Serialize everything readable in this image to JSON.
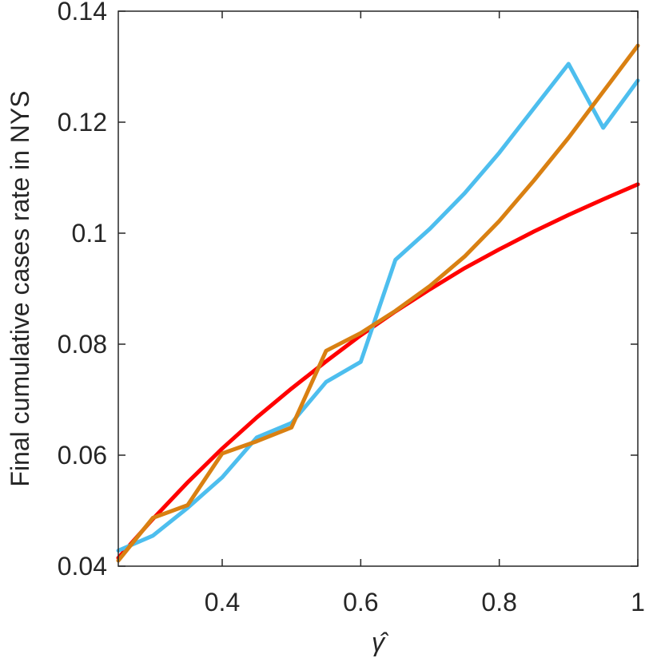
{
  "chart_data": {
    "type": "line",
    "title": "",
    "xlabel": "γ̂",
    "ylabel": "Final cumulative cases rate in NYS",
    "xlim": [
      0.25,
      1.0
    ],
    "ylim": [
      0.04,
      0.14
    ],
    "xticks": [
      0.4,
      0.6,
      0.8,
      1.0
    ],
    "xtick_labels": [
      "0.4",
      "0.6",
      "0.8",
      "1"
    ],
    "yticks": [
      0.04,
      0.06,
      0.08,
      0.1,
      0.12,
      0.14
    ],
    "ytick_labels": [
      "0.04",
      "0.06",
      "0.08",
      "0.1",
      "0.12",
      "0.14"
    ],
    "grid": false,
    "series": [
      {
        "color": "#FF0000",
        "x": [
          0.25,
          0.3,
          0.35,
          0.4,
          0.45,
          0.5,
          0.55,
          0.6,
          0.65,
          0.7,
          0.75,
          0.8,
          0.85,
          0.9,
          0.95,
          1.0
        ],
        "y": [
          0.0415,
          0.0485,
          0.0551,
          0.0612,
          0.0668,
          0.072,
          0.0769,
          0.0816,
          0.0859,
          0.0899,
          0.0937,
          0.0971,
          0.1003,
          0.1033,
          0.1061,
          0.1088
        ]
      },
      {
        "color": "#4DBEEE",
        "x": [
          0.25,
          0.3,
          0.35,
          0.4,
          0.45,
          0.5,
          0.55,
          0.6,
          0.65,
          0.7,
          0.75,
          0.8,
          0.85,
          0.9,
          0.95,
          1.0
        ],
        "y": [
          0.0428,
          0.0455,
          0.0505,
          0.056,
          0.0632,
          0.0658,
          0.0732,
          0.0768,
          0.0952,
          0.1008,
          0.1072,
          0.1145,
          0.1225,
          0.1305,
          0.119,
          0.1275
        ]
      },
      {
        "color": "#D98012",
        "x": [
          0.25,
          0.3,
          0.35,
          0.4,
          0.45,
          0.5,
          0.55,
          0.6,
          0.65,
          0.7,
          0.75,
          0.8,
          0.85,
          0.9,
          0.95,
          1.0
        ],
        "y": [
          0.041,
          0.0487,
          0.051,
          0.0603,
          0.0625,
          0.065,
          0.0788,
          0.082,
          0.086,
          0.0905,
          0.0958,
          0.1022,
          0.1095,
          0.1172,
          0.1255,
          0.1338
        ]
      }
    ]
  }
}
